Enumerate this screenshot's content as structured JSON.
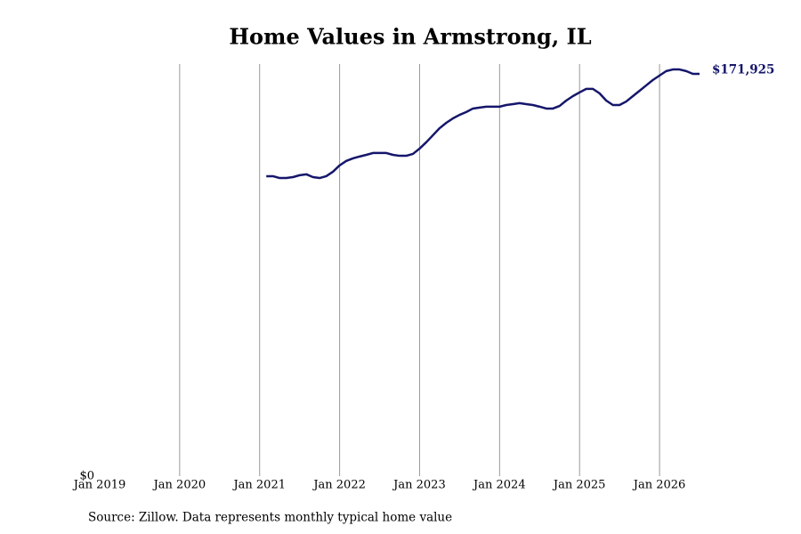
{
  "chart_data": {
    "type": "line",
    "title": "Home Values in Armstrong, IL",
    "source": "Source: Zillow. Data represents monthly typical home value",
    "x": [
      "2021-02",
      "2021-03",
      "2021-04",
      "2021-05",
      "2021-06",
      "2021-07",
      "2021-08",
      "2021-09",
      "2021-10",
      "2021-11",
      "2021-12",
      "2022-01",
      "2022-02",
      "2022-03",
      "2022-04",
      "2022-05",
      "2022-06",
      "2022-07",
      "2022-08",
      "2022-09",
      "2022-10",
      "2022-11",
      "2022-12",
      "2023-01",
      "2023-02",
      "2023-03",
      "2023-04",
      "2023-05",
      "2023-06",
      "2023-07",
      "2023-08",
      "2023-09",
      "2023-10",
      "2023-11",
      "2023-12",
      "2024-01",
      "2024-02",
      "2024-03",
      "2024-04",
      "2024-05",
      "2024-06",
      "2024-07",
      "2024-08",
      "2024-09",
      "2024-10",
      "2024-11",
      "2024-12",
      "2025-01",
      "2025-02",
      "2025-03",
      "2025-04",
      "2025-05",
      "2025-06",
      "2025-07",
      "2025-08",
      "2025-09",
      "2025-10",
      "2025-11",
      "2025-12",
      "2026-01",
      "2026-02",
      "2026-03",
      "2026-04",
      "2026-05",
      "2026-06",
      "2026-07"
    ],
    "series": [
      {
        "name": "Home value",
        "color": "#15166b",
        "values": [
          128200,
          128200,
          127400,
          127400,
          127800,
          128600,
          129000,
          127800,
          127400,
          128200,
          130100,
          132800,
          134700,
          135800,
          136600,
          137300,
          138100,
          138100,
          138100,
          137300,
          136900,
          136900,
          137700,
          140000,
          142700,
          145700,
          148700,
          151000,
          152900,
          154400,
          155600,
          157100,
          157500,
          157900,
          157900,
          157900,
          158600,
          159000,
          159400,
          159000,
          158600,
          157900,
          157100,
          157100,
          158200,
          160500,
          162400,
          164000,
          165500,
          165500,
          163600,
          160500,
          158600,
          158600,
          160100,
          162400,
          164700,
          167000,
          169300,
          171200,
          173100,
          173800,
          173800,
          173100,
          171925,
          171925
        ],
        "value_labels": [
          null,
          null,
          null,
          null,
          null,
          null,
          null,
          null,
          null,
          null,
          null,
          null,
          null,
          null,
          null,
          null,
          null,
          null,
          null,
          null,
          null,
          null,
          null,
          null,
          null,
          null,
          null,
          null,
          null,
          null,
          null,
          null,
          null,
          null,
          null,
          null,
          null,
          null,
          null,
          null,
          null,
          null,
          null,
          null,
          null,
          null,
          null,
          null,
          null,
          null,
          null,
          null,
          null,
          null,
          null,
          null,
          null,
          null,
          null,
          null,
          null,
          null,
          null,
          null,
          null,
          "$171,925"
        ]
      }
    ],
    "xlim": [
      "2019-01",
      "2026-07"
    ],
    "xticks": [
      {
        "value": "2019-01",
        "label": "Jan 2019"
      },
      {
        "value": "2020-01",
        "label": "Jan 2020"
      },
      {
        "value": "2021-01",
        "label": "Jan 2021"
      },
      {
        "value": "2022-01",
        "label": "Jan 2022"
      },
      {
        "value": "2023-01",
        "label": "Jan 2023"
      },
      {
        "value": "2024-01",
        "label": "Jan 2024"
      },
      {
        "value": "2025-01",
        "label": "Jan 2025"
      },
      {
        "value": "2026-01",
        "label": "Jan 2026"
      }
    ],
    "ylim": [
      0,
      176100
    ],
    "yticks": [
      {
        "value": 0,
        "label": "$0"
      }
    ],
    "grid": "x"
  }
}
